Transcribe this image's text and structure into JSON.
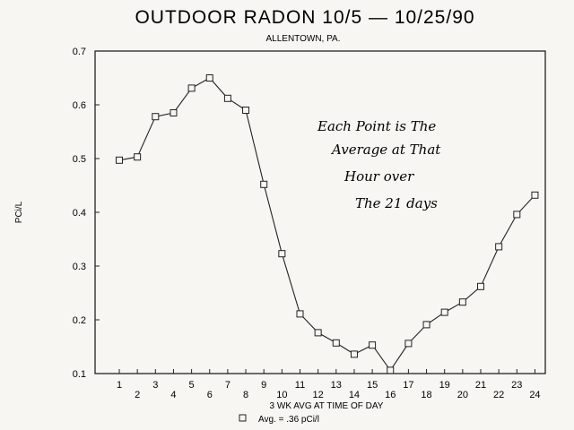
{
  "chart_data": {
    "type": "line",
    "title": "OUTDOOR RADON 10/5 — 10/25/90",
    "subtitle": "ALLENTOWN, PA.",
    "xlabel": "3 WK AVG AT TIME OF DAY",
    "ylabel": "PCi/L",
    "x": [
      1,
      2,
      3,
      4,
      5,
      6,
      7,
      8,
      9,
      10,
      11,
      12,
      13,
      14,
      15,
      16,
      17,
      18,
      19,
      20,
      21,
      22,
      23,
      24
    ],
    "series": [
      {
        "name": "",
        "values": [
          0.497,
          0.503,
          0.578,
          0.585,
          0.631,
          0.65,
          0.612,
          0.59,
          0.452,
          0.323,
          0.211,
          0.176,
          0.157,
          0.136,
          0.153,
          0.106,
          0.156,
          0.191,
          0.214,
          0.233,
          0.262,
          0.336,
          0.396,
          0.432
        ]
      }
    ],
    "ylim": [
      0.1,
      0.7
    ],
    "yticks": [
      "0.1",
      "0.2",
      "0.3",
      "0.4",
      "0.5",
      "0.6",
      "0.7"
    ],
    "xticks": [
      "1",
      "2",
      "3",
      "4",
      "5",
      "6",
      "7",
      "8",
      "9",
      "10",
      "11",
      "12",
      "13",
      "14",
      "15",
      "16",
      "17",
      "18",
      "19",
      "20",
      "21",
      "22",
      "23",
      "24"
    ],
    "legend": {
      "text": "Avg. = .36 pCi/l",
      "placement": "bottom"
    },
    "annotation": [
      "Each Point is The",
      "Average at That",
      "Hour over",
      "The 21 days"
    ],
    "grid": false,
    "marker": "open-square"
  }
}
